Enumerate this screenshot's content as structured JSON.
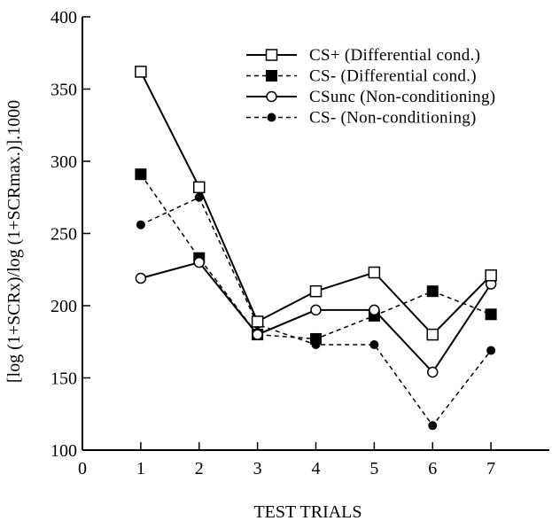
{
  "chart_data": {
    "type": "line",
    "title": "",
    "xlabel": "TEST TRIALS",
    "ylabel": "[log (1+SCRx)/log (1+SCRmax.)].1000",
    "xlim": [
      0,
      8
    ],
    "ylim": [
      100,
      400
    ],
    "x_ticks": [
      0,
      1,
      2,
      3,
      4,
      5,
      6,
      7
    ],
    "y_ticks": [
      100,
      150,
      200,
      250,
      300,
      350,
      400
    ],
    "grid": false,
    "legend_position": "top-right",
    "x": [
      1,
      2,
      3,
      4,
      5,
      6,
      7
    ],
    "series": [
      {
        "name": "CS+ (Differential cond.)",
        "values": [
          362,
          282,
          189,
          210,
          223,
          180,
          221
        ],
        "line": "solid",
        "marker": "open-square"
      },
      {
        "name": "CS- (Differential cond.)",
        "values": [
          291,
          233,
          180,
          177,
          193,
          210,
          194
        ],
        "line": "dashed",
        "marker": "filled-square"
      },
      {
        "name": "CSunc (Non-conditioning)",
        "values": [
          219,
          230,
          180,
          197,
          197,
          154,
          215
        ],
        "line": "solid",
        "marker": "open-circle"
      },
      {
        "name": "CS- (Non-conditioning)",
        "values": [
          256,
          275,
          187,
          173,
          173,
          117,
          169
        ],
        "line": "dashed",
        "marker": "filled-circle"
      }
    ],
    "colors": {
      "line": "#000000",
      "background": "#ffffff"
    }
  }
}
